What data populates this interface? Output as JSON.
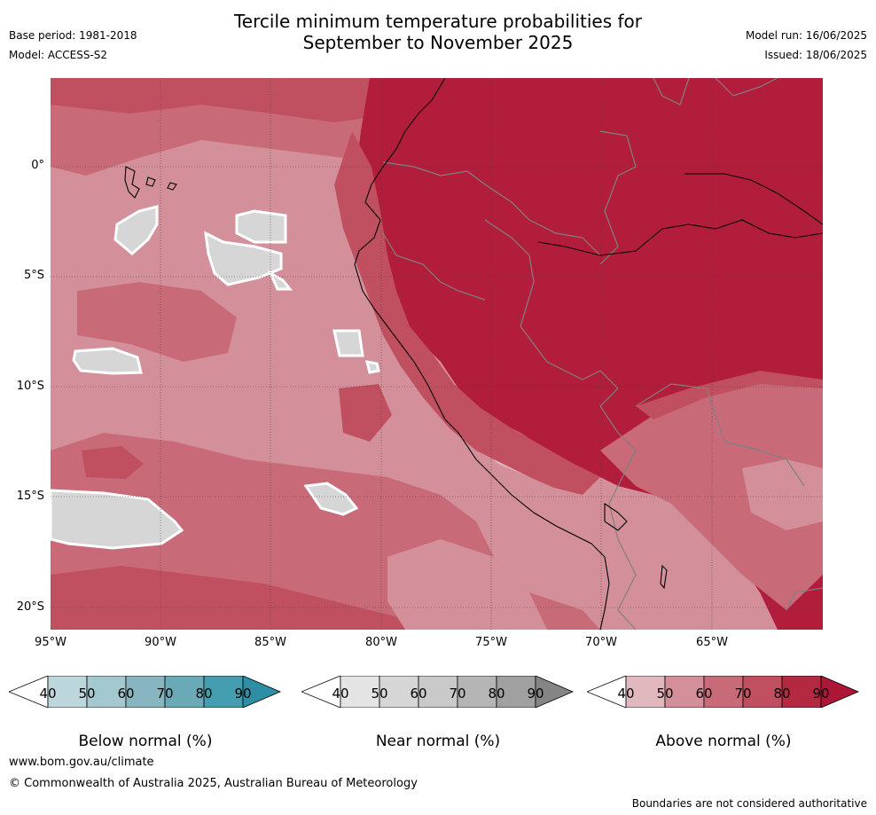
{
  "title": {
    "line1": "Tercile minimum temperature probabilities for",
    "line2": "September to November 2025"
  },
  "meta": {
    "base_period": "Base period: 1981-2018",
    "model": "Model: ACCESS-S2",
    "model_run": "Model run: 16/06/2025",
    "issued": "Issued: 18/06/2025"
  },
  "map": {
    "lat_labels": [
      "0°",
      "5°S",
      "10°S",
      "15°S",
      "20°S"
    ],
    "lon_labels": [
      "95°W",
      "90°W",
      "85°W",
      "80°W",
      "75°W",
      "70°W",
      "65°W"
    ],
    "colors": {
      "ocean_base": "#d4909a",
      "level_50": "#d4909a",
      "level_60": "#c96a78",
      "level_70": "#c04f5f",
      "level_80": "#b21d3b",
      "near_normal": "#d6d6d6",
      "coastline": "#000000",
      "border": "#808080"
    }
  },
  "colorbars": [
    {
      "name": "Below normal (%)",
      "ticks": [
        "40",
        "50",
        "60",
        "70",
        "80",
        "90"
      ],
      "colors": [
        "#ffffff",
        "#bcd6dc",
        "#a4c8cf",
        "#87b6c1",
        "#6aa9b6",
        "#459eaf",
        "#2d8ea5"
      ]
    },
    {
      "name": "Near normal (%)",
      "ticks": [
        "40",
        "50",
        "60",
        "70",
        "80",
        "90"
      ],
      "colors": [
        "#ffffff",
        "#e4e4e4",
        "#d6d6d6",
        "#c9c9c9",
        "#b5b5b5",
        "#a0a0a0",
        "#858585"
      ]
    },
    {
      "name": "Above normal (%)",
      "ticks": [
        "40",
        "50",
        "60",
        "70",
        "80",
        "90"
      ],
      "colors": [
        "#ffffff",
        "#e1b8bd",
        "#d4909a",
        "#c96a78",
        "#c04f5f",
        "#b3293f",
        "#ad1636"
      ]
    }
  ],
  "footer": {
    "url": "www.bom.gov.au/climate",
    "copyright": "© Commonwealth of Australia 2025, Australian Bureau of Meteorology",
    "disclaimer": "Boundaries are not considered authoritative"
  }
}
